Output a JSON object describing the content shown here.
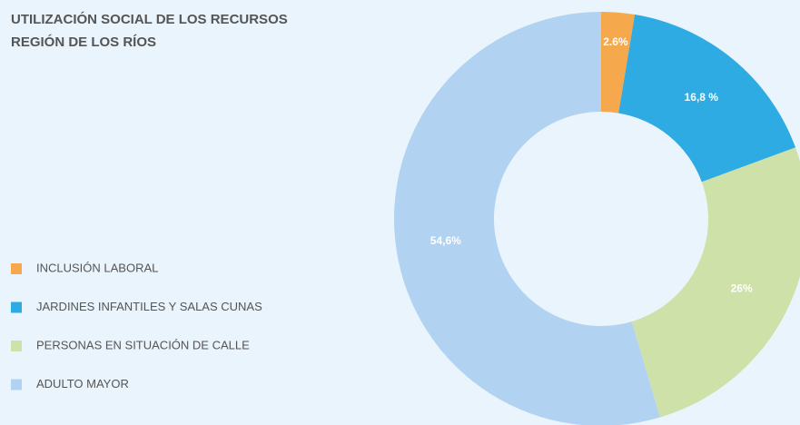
{
  "chart_data": {
    "type": "donut",
    "title": "UTILIZACIÓN SOCIAL DE LOS RECURSOS",
    "subtitle": "REGIÓN DE LOS RÍOS",
    "categories": [
      "INCLUSIÓN LABORAL",
      "JARDINES INFANTILES Y SALAS CUNAS",
      "PERSONAS EN SITUACIÓN DE CALLE",
      "ADULTO MAYOR"
    ],
    "values": [
      2.6,
      16.8,
      26,
      54.6
    ],
    "value_labels": [
      "2.6%",
      "16,8 %",
      "26%",
      "54,6%"
    ],
    "colors": [
      "#f6a84c",
      "#2eabe2",
      "#cee1a8",
      "#b1d3f1"
    ]
  }
}
